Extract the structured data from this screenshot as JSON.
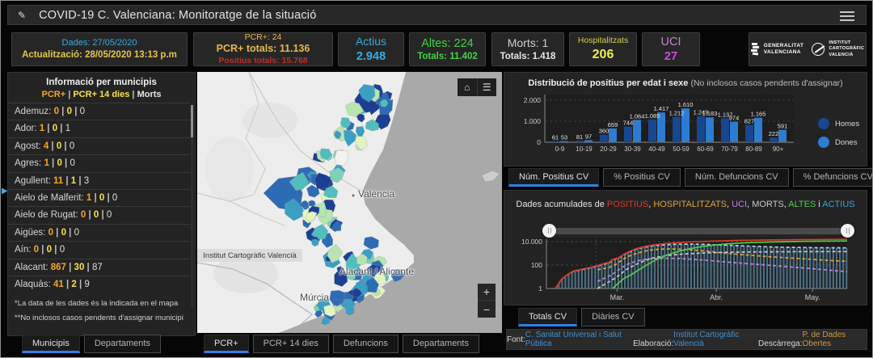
{
  "header": {
    "title": "COVID-19 C. Valenciana: Monitoratge de la situació"
  },
  "accent_colors": {
    "cyan": "#35aee0",
    "gold": "#e5c64a",
    "red": "#bf2e2e",
    "green": "#44d344",
    "magenta": "#d44ae0",
    "yellow": "#eef04e",
    "tab_active_blue": "#2e7fe8",
    "link_blue": "#3f8fd4",
    "link_orange": "#d09a3e"
  },
  "stats": {
    "dades": "Dades: 27/05/2020",
    "actualitzacio": "Actualització: 28/05/2020 13:13 p.m",
    "pcr_nou": "PCR+: 24",
    "pcr_totals": "PCR+ totals: 11.136",
    "positius_totals": "Positius totals: 15.768",
    "actius_label": "Actius",
    "actius_value": "2.948",
    "altes": "Altes: 224",
    "altes_totals": "Totals: 11.402",
    "morts": "Morts: 1",
    "morts_totals": "Totals: 1.418",
    "hosp_label": "Hospitalitzats",
    "hosp_value": "206",
    "uci_label": "UCI",
    "uci_value": "27",
    "gva_line1": "GENERALITAT",
    "gva_line2": "VALENCIANA",
    "icv_line1": "INSTITUT",
    "icv_line2": "CARTOGRÀFIC",
    "icv_line3": "VALENCIÀ"
  },
  "municipis_panel": {
    "title": "Informació per municipis",
    "legend": {
      "pcr": "PCR+",
      "pcr14": "PCR+ 14 dies",
      "morts": "Morts"
    },
    "sep": " | ",
    "colon": ": ",
    "rows": [
      {
        "name": "Ademuz",
        "v1": "0",
        "v2": "0",
        "v3": "0"
      },
      {
        "name": "Ador",
        "v1": "1",
        "v2": "0",
        "v3": "1"
      },
      {
        "name": "Agost",
        "v1": "4",
        "v2": "0",
        "v3": "0"
      },
      {
        "name": "Agres",
        "v1": "1",
        "v2": "0",
        "v3": "0"
      },
      {
        "name": "Agullent",
        "v1": "11",
        "v2": "1",
        "v3": "3"
      },
      {
        "name": "Aielo de Malferit",
        "v1": "1",
        "v2": "0",
        "v3": "0"
      },
      {
        "name": "Aielo de Rugat",
        "v1": "0",
        "v2": "0",
        "v3": "0"
      },
      {
        "name": "Aigües",
        "v1": "0",
        "v2": "0",
        "v3": "0"
      },
      {
        "name": "Aín",
        "v1": "0",
        "v2": "0",
        "v3": "0"
      },
      {
        "name": "Alacant",
        "v1": "867",
        "v2": "30",
        "v3": "87"
      },
      {
        "name": "Alaquàs",
        "v1": "41",
        "v2": "2",
        "v3": "9"
      }
    ],
    "footnote1": "*La data de les dades és la indicada en el mapa",
    "footnote2": "**No inclosos casos pendents d'assignar municipi",
    "tabs": [
      {
        "label": "Municipis",
        "active": true
      },
      {
        "label": "Departaments",
        "active": false
      }
    ]
  },
  "map": {
    "labels": {
      "valencia": "València",
      "alacant": "Alacant / Alicante",
      "murcia": "Múrcia"
    },
    "attribution": "Institut Cartogràfic Valencià",
    "zoom_in": "+",
    "zoom_out": "−",
    "home_icon": "⌂",
    "legend_icon": "☰",
    "choropleth_palette": [
      "#1c3f94",
      "#2d6cb5",
      "#3b9fc4",
      "#52bdbd",
      "#7ed0b8",
      "#b8e4b0",
      "#e4f4c0",
      "#f2f2ee"
    ],
    "tabs": [
      {
        "label": "PCR+",
        "active": true
      },
      {
        "label": "PCR+ 14 dies",
        "active": false
      },
      {
        "label": "Defuncions",
        "active": false
      },
      {
        "label": "Departaments",
        "active": false
      }
    ]
  },
  "age_tabs": [
    {
      "label": "Núm. Positius CV",
      "active": true
    },
    {
      "label": "% Positius CV",
      "active": false
    },
    {
      "label": "Núm. Defuncions CV",
      "active": false
    },
    {
      "label": "% Defuncions CV",
      "active": false
    }
  ],
  "acumulades": {
    "prefix": "Dades acumulades de ",
    "sep": ", ",
    "and": " i ",
    "words": [
      {
        "text": "POSITIUS",
        "color": "#d93a2b"
      },
      {
        "text": "HOSPITALITZATS",
        "color": "#e0a33e"
      },
      {
        "text": "UCI",
        "color": "#bd84dd"
      },
      {
        "text": "MORTS",
        "color": "#c9c9c9"
      },
      {
        "text": "ALTES",
        "color": "#4ccf4c"
      },
      {
        "text": "ACTIUS",
        "color": "#3aa6d8"
      }
    ],
    "tabs": [
      {
        "label": "Totals CV",
        "active": true
      },
      {
        "label": "Diàries CV",
        "active": false
      }
    ]
  },
  "footer": {
    "font_label": "Font: ",
    "font_link": "C. Sanitat Universal i Salut Pública",
    "elab_label": " Elaboració: ",
    "elab_link": "Institut Cartogràfic Valencià",
    "desc_label": " Descàrrega: ",
    "desc_link": "P. de Dades Obertes"
  },
  "chart_data": [
    {
      "type": "bar",
      "title": "Distribució de positius per edat i sexe ",
      "subtitle": "(No inclosos casos pendents d'assignar)",
      "categories": [
        "0-9",
        "10-19",
        "20-29",
        "30-39",
        "40-49",
        "50-59",
        "60-69",
        "70-79",
        "80-89",
        "90+"
      ],
      "series": [
        {
          "name": "Homes",
          "color": "#17478f",
          "values": [
            61,
            81,
            360,
            744,
            1085,
            1212,
            1249,
            1137,
            827,
            222
          ],
          "labels": [
            "61",
            "81",
            "360",
            "744",
            "1.085",
            "1.212",
            "1.249",
            "1.137",
            "827",
            "222"
          ]
        },
        {
          "name": "Dones",
          "color": "#2e7cd0",
          "values": [
            53,
            97,
            659,
            1064,
            1417,
            1610,
            1183,
            974,
            1165,
            591
          ],
          "labels": [
            "53",
            "97",
            "659",
            "1.064",
            "1.417",
            "1.610",
            "1.183",
            "974",
            "1.165",
            "591"
          ]
        }
      ],
      "ylim": [
        0,
        2000
      ],
      "yticks": [
        "0",
        "1.000",
        "2.000"
      ],
      "legend_position": "right",
      "grid": true
    },
    {
      "type": "line",
      "title": "Dades acumulades de POSITIUS, HOSPITALITZATS, UCI, MORTS, ALTES i ACTIUS",
      "yscale": "log",
      "ygrid": [
        {
          "v": 1,
          "label": "1"
        },
        {
          "v": 100,
          "label": "100"
        },
        {
          "v": 10000,
          "label": "10.000"
        }
      ],
      "xticks": [
        {
          "f": 0.235,
          "label": "Mar."
        },
        {
          "f": 0.565,
          "label": "Abr."
        },
        {
          "f": 0.885,
          "label": "May."
        }
      ],
      "series": [
        {
          "name": "POSITIUS",
          "color": "#d93a2b",
          "dash": false,
          "end_value": 15768,
          "points": [
            [
              0.03,
              1
            ],
            [
              0.05,
              6
            ],
            [
              0.07,
              15
            ],
            [
              0.09,
              32
            ],
            [
              0.11,
              40
            ],
            [
              0.13,
              52
            ],
            [
              0.15,
              65
            ],
            [
              0.17,
              90
            ],
            [
              0.19,
              130
            ],
            [
              0.21,
              180
            ],
            [
              0.22,
              310
            ],
            [
              0.24,
              420
            ],
            [
              0.26,
              900
            ],
            [
              0.28,
              1600
            ],
            [
              0.3,
              2600
            ],
            [
              0.33,
              4000
            ],
            [
              0.36,
              5400
            ],
            [
              0.4,
              7000
            ],
            [
              0.44,
              8400
            ],
            [
              0.48,
              9500
            ],
            [
              0.52,
              10400
            ],
            [
              0.56,
              11200
            ],
            [
              0.6,
              12000
            ],
            [
              0.65,
              12800
            ],
            [
              0.7,
              13400
            ],
            [
              0.75,
              13900
            ],
            [
              0.8,
              14400
            ],
            [
              0.85,
              14800
            ],
            [
              0.9,
              15200
            ],
            [
              0.95,
              15500
            ],
            [
              1.0,
              15768
            ]
          ]
        },
        {
          "name": "HOSPITALITZATS",
          "color": "#e0a33e",
          "dash": true,
          "end_value": 206,
          "points": [
            [
              0.17,
              40
            ],
            [
              0.19,
              50
            ],
            [
              0.21,
              65
            ],
            [
              0.23,
              110
            ],
            [
              0.25,
              260
            ],
            [
              0.27,
              520
            ],
            [
              0.3,
              1000
            ],
            [
              0.33,
              1600
            ],
            [
              0.36,
              2100
            ],
            [
              0.4,
              2400
            ],
            [
              0.44,
              2300
            ],
            [
              0.48,
              2000
            ],
            [
              0.52,
              1650
            ],
            [
              0.56,
              1300
            ],
            [
              0.6,
              1000
            ],
            [
              0.65,
              780
            ],
            [
              0.7,
              620
            ],
            [
              0.75,
              500
            ],
            [
              0.8,
              420
            ],
            [
              0.85,
              350
            ],
            [
              0.9,
              290
            ],
            [
              0.95,
              240
            ],
            [
              1.0,
              206
            ]
          ]
        },
        {
          "name": "UCI",
          "color": "#bd84dd",
          "dash": true,
          "end_value": 27,
          "points": [
            [
              0.17,
              4
            ],
            [
              0.19,
              7
            ],
            [
              0.21,
              12
            ],
            [
              0.23,
              25
            ],
            [
              0.25,
              60
            ],
            [
              0.27,
              120
            ],
            [
              0.3,
              220
            ],
            [
              0.33,
              310
            ],
            [
              0.36,
              360
            ],
            [
              0.4,
              380
            ],
            [
              0.44,
              360
            ],
            [
              0.48,
              320
            ],
            [
              0.52,
              270
            ],
            [
              0.56,
              220
            ],
            [
              0.6,
              180
            ],
            [
              0.65,
              145
            ],
            [
              0.7,
              115
            ],
            [
              0.75,
              92
            ],
            [
              0.8,
              73
            ],
            [
              0.85,
              58
            ],
            [
              0.9,
              45
            ],
            [
              0.95,
              35
            ],
            [
              1.0,
              27
            ]
          ]
        },
        {
          "name": "MORTS",
          "color": "#c9c9c9",
          "dash": true,
          "end_value": 1418,
          "points": [
            [
              0.17,
              1
            ],
            [
              0.19,
              2
            ],
            [
              0.21,
              4
            ],
            [
              0.23,
              8
            ],
            [
              0.25,
              20
            ],
            [
              0.27,
              50
            ],
            [
              0.3,
              120
            ],
            [
              0.33,
              260
            ],
            [
              0.36,
              440
            ],
            [
              0.4,
              640
            ],
            [
              0.44,
              820
            ],
            [
              0.48,
              960
            ],
            [
              0.52,
              1070
            ],
            [
              0.56,
              1160
            ],
            [
              0.6,
              1230
            ],
            [
              0.65,
              1290
            ],
            [
              0.7,
              1330
            ],
            [
              0.75,
              1360
            ],
            [
              0.8,
              1380
            ],
            [
              0.85,
              1395
            ],
            [
              0.9,
              1405
            ],
            [
              0.95,
              1413
            ],
            [
              1.0,
              1418
            ]
          ]
        },
        {
          "name": "ALTES",
          "color": "#4ccf4c",
          "dash": false,
          "end_value": 11402,
          "points": [
            [
              0.22,
              1
            ],
            [
              0.24,
              3
            ],
            [
              0.26,
              8
            ],
            [
              0.28,
              14
            ],
            [
              0.3,
              30
            ],
            [
              0.33,
              90
            ],
            [
              0.36,
              250
            ],
            [
              0.4,
              700
            ],
            [
              0.44,
              1500
            ],
            [
              0.48,
              2600
            ],
            [
              0.52,
              3900
            ],
            [
              0.56,
              5200
            ],
            [
              0.6,
              6400
            ],
            [
              0.65,
              7600
            ],
            [
              0.7,
              8600
            ],
            [
              0.75,
              9400
            ],
            [
              0.8,
              10000
            ],
            [
              0.85,
              10500
            ],
            [
              0.9,
              10900
            ],
            [
              0.95,
              11200
            ],
            [
              1.0,
              11402
            ]
          ]
        },
        {
          "name": "ACTIUS",
          "color": "#aed4ea",
          "dash": true,
          "area": true,
          "end_value": 2948,
          "points": [
            [
              0.03,
              1
            ],
            [
              0.05,
              6
            ],
            [
              0.07,
              15
            ],
            [
              0.09,
              30
            ],
            [
              0.11,
              38
            ],
            [
              0.13,
              48
            ],
            [
              0.15,
              60
            ],
            [
              0.17,
              82
            ],
            [
              0.19,
              118
            ],
            [
              0.21,
              160
            ],
            [
              0.22,
              280
            ],
            [
              0.24,
              380
            ],
            [
              0.26,
              820
            ],
            [
              0.28,
              1450
            ],
            [
              0.3,
              2350
            ],
            [
              0.33,
              3500
            ],
            [
              0.36,
              4600
            ],
            [
              0.4,
              5500
            ],
            [
              0.44,
              6000
            ],
            [
              0.48,
              6100
            ],
            [
              0.52,
              5900
            ],
            [
              0.56,
              5500
            ],
            [
              0.6,
              5000
            ],
            [
              0.65,
              4400
            ],
            [
              0.7,
              3900
            ],
            [
              0.75,
              3500
            ],
            [
              0.8,
              3300
            ],
            [
              0.85,
              3150
            ],
            [
              0.9,
              3050
            ],
            [
              0.95,
              3000
            ],
            [
              1.0,
              2948
            ]
          ]
        }
      ]
    }
  ]
}
